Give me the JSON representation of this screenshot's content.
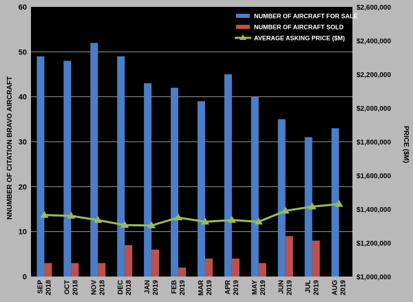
{
  "colors": {
    "background": "#b9b9b9",
    "plot_background": "#000000",
    "gridline": "#9a9a9a",
    "for_sale": "#4a7ec7",
    "sold": "#c0504d",
    "price": "#9bbb59",
    "text": "#000000",
    "legend_text": "#ffffff"
  },
  "chart_data": {
    "type": "bar",
    "categories": [
      [
        "SEP",
        "2018"
      ],
      [
        "OCT",
        "2018"
      ],
      [
        "NOV",
        "2018"
      ],
      [
        "DEC",
        "2018"
      ],
      [
        "JAN",
        "2019"
      ],
      [
        "FEB",
        "2019"
      ],
      [
        "MAR",
        "2019"
      ],
      [
        "APR",
        "2019"
      ],
      [
        "MAY",
        "2019"
      ],
      [
        "JUN",
        "2019"
      ],
      [
        "JUL",
        "2019"
      ],
      [
        "AUG",
        "2019"
      ]
    ],
    "series": [
      {
        "name": "NUMBER OF AIRCRAFT FOR SALE",
        "type": "bar",
        "axis": "left",
        "color": "#4a7ec7",
        "values": [
          49,
          48,
          52,
          49,
          43,
          42,
          39,
          45,
          40,
          35,
          31,
          33
        ]
      },
      {
        "name": "NUMBER OF AIRCRAFT SOLD",
        "type": "bar",
        "axis": "left",
        "color": "#c0504d",
        "values": [
          3,
          3,
          3,
          7,
          6,
          2,
          4,
          4,
          3,
          9,
          8,
          0
        ]
      },
      {
        "name": "AVERAGE ASKING PRICE ($M)",
        "type": "line",
        "marker": "triangle",
        "axis": "right",
        "color": "#9bbb59",
        "values": [
          1365000,
          1360000,
          1335000,
          1305000,
          1303000,
          1350000,
          1325000,
          1335000,
          1325000,
          1390000,
          1415000,
          1430000
        ]
      }
    ],
    "ylabel_left": "NNUMBER OF CITATION BRAVO AIRCRAFT",
    "ylabel_right": "PRICE ($M)",
    "ylim_left": [
      0,
      60
    ],
    "yticks_left": [
      0,
      10,
      20,
      30,
      40,
      50,
      60
    ],
    "ylim_right": [
      1000000,
      2600000
    ],
    "yticks_right": [
      1000000,
      1200000,
      1400000,
      1600000,
      1800000,
      2000000,
      2200000,
      2400000,
      2600000
    ],
    "ytick_labels_right": [
      "$1,000,000",
      "$1,200,000",
      "$1,400,000",
      "$1,600,000",
      "$1,800,000",
      "$2,000,000",
      "$2,200,000",
      "$2,400,000",
      "$2,600,000"
    ],
    "grid": true,
    "legend_position": "top-right"
  }
}
